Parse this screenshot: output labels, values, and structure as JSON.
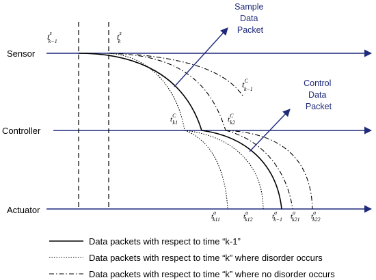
{
  "lanes": {
    "sensor": "Sensor",
    "controller": "Controller",
    "actuator": "Actuator"
  },
  "callouts": {
    "sample": [
      "Sample",
      "Data",
      "Packet"
    ],
    "control": [
      "Control",
      "Data",
      "Packet"
    ]
  },
  "time_labels": {
    "ts_km1": {
      "base": "t",
      "sup": "s",
      "sub": "k−1"
    },
    "ts_k": {
      "base": "t",
      "sup": "s",
      "sub": "k"
    },
    "tc_km1": {
      "base": "t",
      "sup": "C",
      "sub": "k−1"
    },
    "tc_k1": {
      "base": "t",
      "sup": "C",
      "sub": "k1"
    },
    "tc_k2": {
      "base": "t",
      "sup": "C",
      "sub": "k2"
    },
    "ta_k11": {
      "base": "t",
      "sup": "a",
      "sub": "k11"
    },
    "ta_k12": {
      "base": "t",
      "sup": "a",
      "sub": "k12"
    },
    "ta_km1": {
      "base": "t",
      "sup": "a",
      "sub": "k−1"
    },
    "ta_k21": {
      "base": "t",
      "sup": "a",
      "sub": "k21"
    },
    "ta_k22": {
      "base": "t",
      "sup": "a",
      "sub": "k22"
    }
  },
  "legend": [
    {
      "style": "solid",
      "text": "Data packets with respect to time “k-1”"
    },
    {
      "style": "dotted",
      "text": "Data packets with respect to time “k” where disorder occurs"
    },
    {
      "style": "dashdot",
      "text": "Data packets with respect to time “k” where no disorder occurs"
    }
  ],
  "colors": {
    "lane_arrow": "#1f2a7a",
    "curve": "#000000",
    "callout_text": "#1f2a7a"
  }
}
